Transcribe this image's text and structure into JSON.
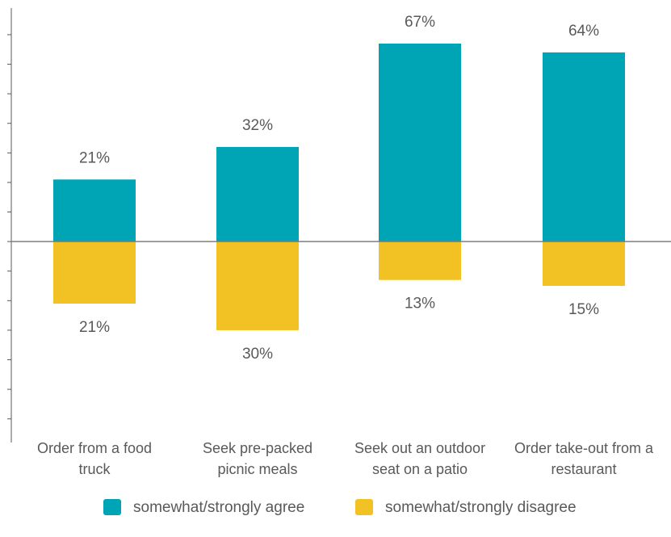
{
  "chart_data": {
    "type": "diverging_bar",
    "categories": [
      "Order from a food truck",
      "Seek pre-packed picnic meals",
      "Seek out an outdoor seat on a patio",
      "Order take-out from a restaurant"
    ],
    "series": [
      {
        "name": "somewhat/strongly agree",
        "color": "#00a5b5",
        "values": [
          21,
          32,
          67,
          64
        ],
        "value_labels": [
          "21%",
          "32%",
          "67%",
          "64%"
        ]
      },
      {
        "name": "somewhat/strongly disagree",
        "color": "#f2c123",
        "values": [
          21,
          30,
          13,
          15
        ],
        "value_labels": [
          "21%",
          "30%",
          "13%",
          "15%"
        ]
      }
    ],
    "ylim": [
      -68,
      79
    ],
    "yticks": [
      -60,
      -50,
      -40,
      -30,
      -20,
      -10,
      0,
      10,
      20,
      30,
      40,
      50,
      60,
      70
    ]
  }
}
